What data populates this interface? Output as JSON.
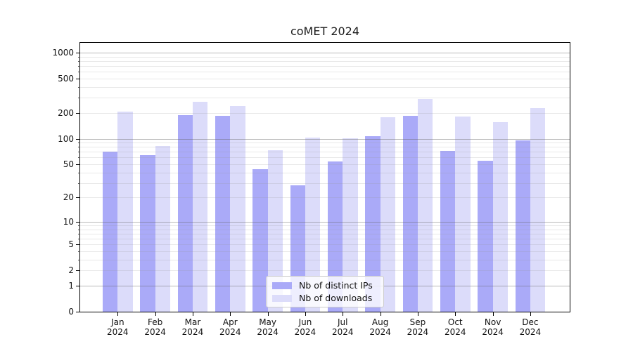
{
  "figure": {
    "title": "coMET 2024"
  },
  "legend": {
    "items": [
      {
        "label": "Nb of distinct IPs",
        "color": "#aaaaf8"
      },
      {
        "label": "Nb of downloads",
        "color": "#dcdcfa"
      }
    ]
  },
  "chart_data": {
    "type": "bar",
    "title": "coMET 2024",
    "categories": [
      "Jan 2024",
      "Feb 2024",
      "Mar 2024",
      "Apr 2024",
      "May 2024",
      "Jun 2024",
      "Jul 2024",
      "Aug 2024",
      "Sep 2024",
      "Oct 2024",
      "Nov 2024",
      "Dec 2024"
    ],
    "month_line1": [
      "Jan",
      "Feb",
      "Mar",
      "Apr",
      "May",
      "Jun",
      "Jul",
      "Aug",
      "Sep",
      "Oct",
      "Nov",
      "Dec"
    ],
    "month_line2": "2024",
    "series": [
      {
        "name": "Nb of distinct IPs",
        "color": "#aaaaf8",
        "values": [
          70,
          64,
          189,
          183,
          44,
          28,
          54,
          106,
          183,
          72,
          55,
          95
        ]
      },
      {
        "name": "Nb of downloads",
        "color": "#dcdcfa",
        "values": [
          206,
          82,
          270,
          240,
          73,
          103,
          101,
          178,
          292,
          180,
          156,
          228
        ]
      }
    ],
    "xlabel": "",
    "ylabel": "",
    "yscale": "log1p",
    "ytick_values": [
      0,
      1,
      2,
      5,
      10,
      20,
      50,
      100,
      200,
      500,
      1000
    ],
    "minor_grid_values": [
      2,
      3,
      4,
      5,
      6,
      7,
      8,
      9,
      20,
      30,
      40,
      50,
      60,
      70,
      80,
      90,
      200,
      300,
      400,
      500,
      600,
      700,
      800,
      900
    ],
    "major_grid_values": [
      1,
      10,
      100,
      1000
    ],
    "ylim": [
      0,
      1300
    ],
    "grid": "horizontal major+minor",
    "legend_position": "lower center",
    "colors": {
      "major_grid": "#b0b0b0",
      "minor_grid": "#e9e9e9",
      "spine": "#000000",
      "text": "#111111"
    }
  }
}
